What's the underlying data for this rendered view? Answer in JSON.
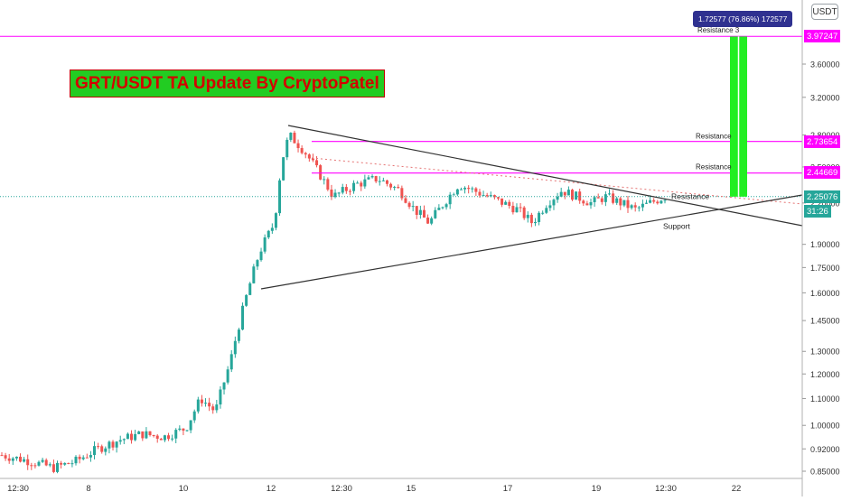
{
  "currency_badge": "USDT",
  "title_banner": "GRT/USDT TA Update By CryptoPatel",
  "measure_label": "1.72577 (76.86%) 172577",
  "colors": {
    "up": "#26a69a",
    "down": "#ef5350",
    "resistance_line": "#ff00ff",
    "trendline": "#333333",
    "target_bar": "#22ee22",
    "current_price": "#26a69a",
    "title_text": "#d40000",
    "title_bg": "#22cc22"
  },
  "price_axis": {
    "ticks": [
      "3.60000",
      "3.20000",
      "2.80000",
      "2.50000",
      "2.20000",
      "1.90000",
      "1.75000",
      "1.60000",
      "1.45000",
      "1.30000",
      "1.20000",
      "1.10000",
      "1.00000",
      "0.92000",
      "0.85000"
    ],
    "scale": "log"
  },
  "time_axis": {
    "ticks": [
      "12:30",
      "8",
      "10",
      "12",
      "12:30",
      "15",
      "17",
      "19",
      "12:30",
      "22"
    ]
  },
  "price_tags": [
    {
      "label": "3.97247",
      "color": "#ff00ff"
    },
    {
      "label": "2.73654",
      "color": "#ff00ff"
    },
    {
      "label": "2.44669",
      "color": "#ff00ff"
    },
    {
      "label": "2.25076",
      "color": "#26a69a"
    },
    {
      "label": "31:26",
      "color": "#26a69a"
    }
  ],
  "annotations": {
    "resistance_3": "Resistance 3",
    "resistance_2": "Resistance",
    "resistance_1": "Resistance",
    "resistance_trend": "Resistance",
    "support": "Support"
  },
  "chart_data": {
    "type": "candlestick",
    "symbol": "GRT/USDT",
    "y_scale": "log",
    "ylim": [
      0.85,
      3.97
    ],
    "horizontal_levels": [
      {
        "name": "Resistance 3",
        "value": 3.97247
      },
      {
        "name": "Resistance",
        "value": 2.73654
      },
      {
        "name": "Resistance",
        "value": 2.44669
      },
      {
        "name": "Current price",
        "value": 2.25076
      }
    ],
    "target_measure": {
      "from": 2.25,
      "to": 3.97,
      "change": 1.72577,
      "change_pct": 76.86
    },
    "close_path": [
      [
        0,
        0.9
      ],
      [
        4,
        0.88
      ],
      [
        7,
        0.86
      ],
      [
        10,
        0.88
      ],
      [
        13,
        0.92
      ],
      [
        16,
        0.95
      ],
      [
        19,
        0.97
      ],
      [
        22,
        0.96
      ],
      [
        25,
        0.99
      ],
      [
        27,
        1.1
      ],
      [
        29,
        1.05
      ],
      [
        31,
        1.25
      ],
      [
        33,
        1.55
      ],
      [
        35,
        1.85
      ],
      [
        37,
        2.05
      ],
      [
        38,
        2.55
      ],
      [
        39,
        2.8
      ],
      [
        41,
        2.65
      ],
      [
        43,
        2.45
      ],
      [
        45,
        2.25
      ],
      [
        48,
        2.35
      ],
      [
        51,
        2.4
      ],
      [
        54,
        2.3
      ],
      [
        56,
        2.15
      ],
      [
        58,
        2.05
      ],
      [
        60,
        2.2
      ],
      [
        62,
        2.35
      ],
      [
        64,
        2.3
      ],
      [
        66,
        2.25
      ],
      [
        68,
        2.2
      ],
      [
        70,
        2.15
      ],
      [
        72,
        2.05
      ],
      [
        74,
        2.2
      ],
      [
        76,
        2.3
      ],
      [
        78,
        2.25
      ],
      [
        80,
        2.2
      ],
      [
        82,
        2.25
      ],
      [
        84,
        2.2
      ],
      [
        86,
        2.15
      ],
      [
        88,
        2.2
      ],
      [
        90,
        2.25
      ]
    ]
  }
}
